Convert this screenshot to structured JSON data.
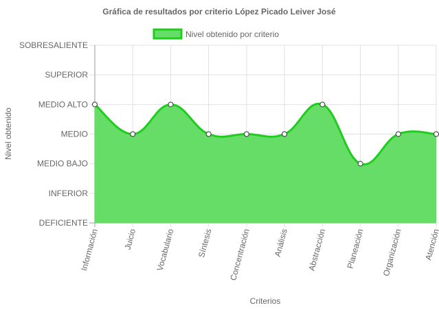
{
  "chart_data": {
    "type": "area",
    "title": "Gráfica de resultados por criterio López Picado Leiver José",
    "xlabel": "Criterios",
    "ylabel": "Nivel obtenido",
    "legend_position": "top",
    "grid": true,
    "y_levels": [
      "DEFICIENTE",
      "INFERIOR",
      "MEDIO BAJO",
      "MEDIO",
      "MEDIO ALTO",
      "SUPERIOR",
      "SOBRESALIENTE"
    ],
    "ylim": [
      0,
      6
    ],
    "categories": [
      "Información",
      "Juicio",
      "Vocabulario",
      "Síntesis",
      "Concentración",
      "Análisis",
      "Abstracción",
      "Planeación",
      "Organización",
      "Atención"
    ],
    "series": [
      {
        "name": "Nivel obtenido por criterio",
        "values": [
          4,
          3,
          4,
          3,
          3,
          3,
          4,
          2,
          3,
          3
        ],
        "color": "#1fcc1f",
        "fill": "#66dd66"
      }
    ]
  }
}
